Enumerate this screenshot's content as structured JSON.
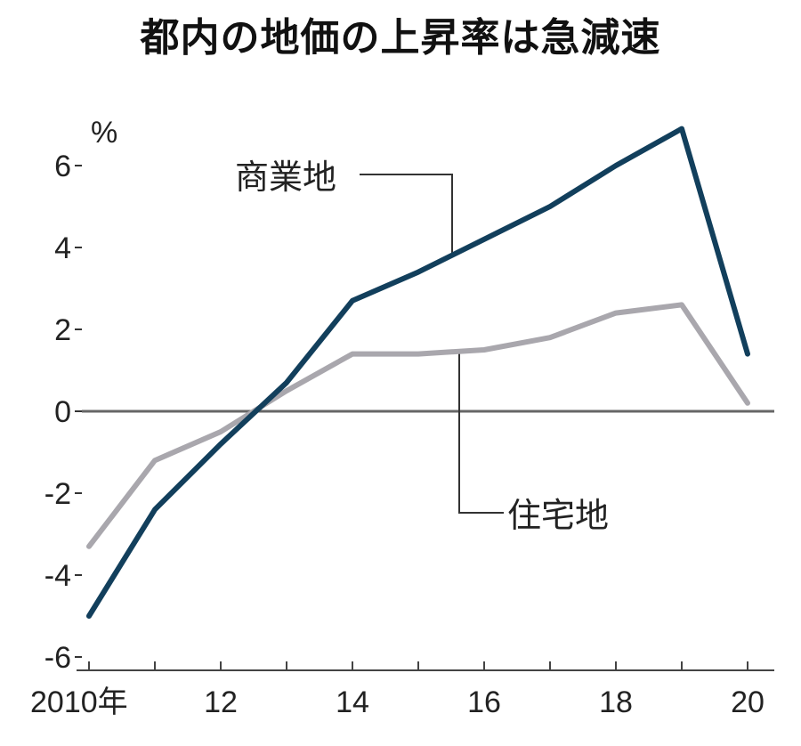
{
  "chart_data": {
    "type": "line",
    "title": "都内の地価の上昇率は急減速",
    "ylabel": "%",
    "xlabel": "",
    "x": [
      2010,
      2011,
      2012,
      2013,
      2014,
      2015,
      2016,
      2017,
      2018,
      2019,
      2020
    ],
    "x_tick_labels": [
      {
        "x": 2010,
        "label": "2010年"
      },
      {
        "x": 2012,
        "label": "12"
      },
      {
        "x": 2014,
        "label": "14"
      },
      {
        "x": 2016,
        "label": "16"
      },
      {
        "x": 2018,
        "label": "18"
      },
      {
        "x": 2020,
        "label": "20"
      }
    ],
    "y_ticks": [
      6,
      4,
      2,
      0,
      -2,
      -4,
      -6
    ],
    "ylim": [
      -6,
      7
    ],
    "grid": false,
    "series": [
      {
        "name": "商業地",
        "color": "#123f5c",
        "values": [
          -5.0,
          -2.4,
          -0.8,
          0.7,
          2.7,
          3.4,
          4.2,
          5.0,
          6.0,
          6.9,
          1.4
        ]
      },
      {
        "name": "住宅地",
        "color": "#a9a7ad",
        "values": [
          -3.3,
          -1.2,
          -0.5,
          0.5,
          1.4,
          1.4,
          1.5,
          1.8,
          2.4,
          2.6,
          0.2
        ]
      }
    ]
  }
}
